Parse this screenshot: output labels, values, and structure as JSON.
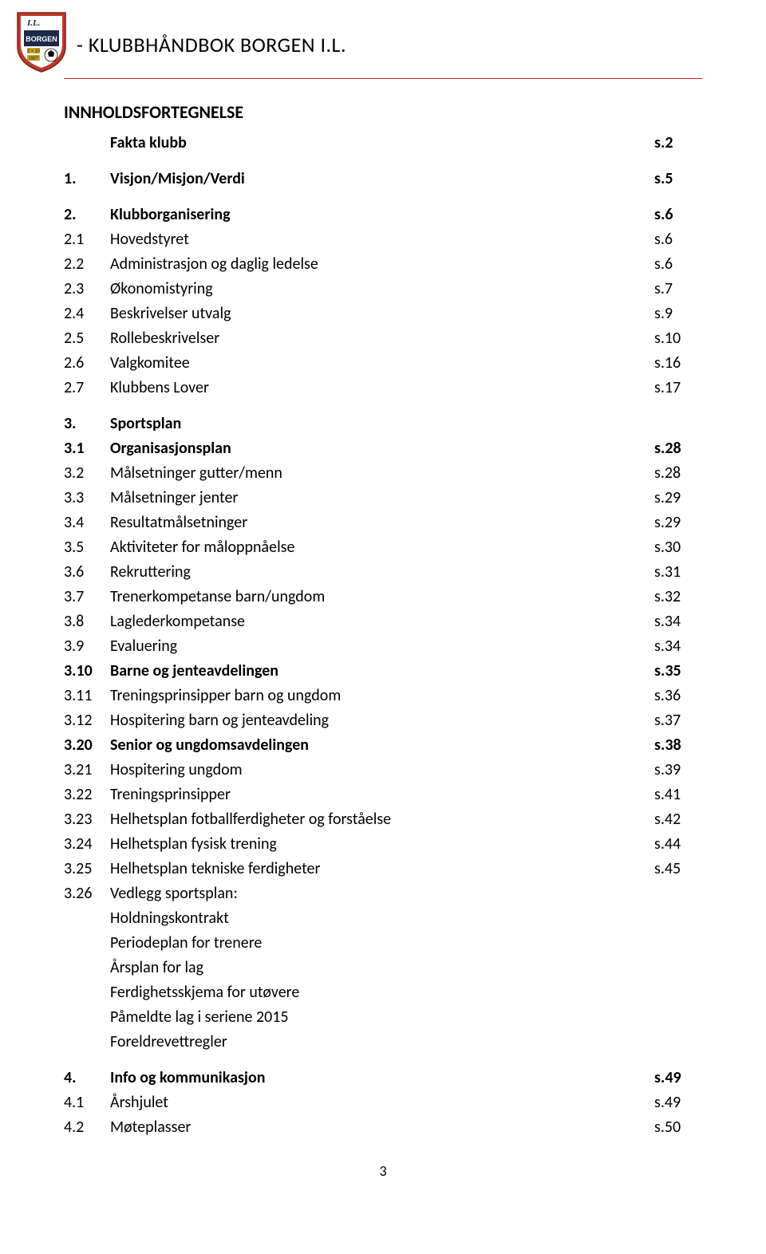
{
  "header": {
    "title": "- KLUBBHÅNDBOK BORGEN I.L.",
    "logo_colors": {
      "red": "#c0392b",
      "white": "#ffffff",
      "navy": "#1a2a4a",
      "gold": "#c9a227"
    },
    "logo_text_top": "I.L.",
    "logo_text_mid": "BORGEN",
    "logo_text_small1": "2 × 10",
    "logo_text_small2": "1927",
    "hr_color": "#c02020"
  },
  "toc_heading": "INNHOLDSFORTEGNELSE",
  "toc": [
    {
      "num": "",
      "label": "Fakta klubb",
      "page": "s.2",
      "bold": true
    },
    {
      "num": "1.",
      "label": "Visjon/Misjon/Verdi",
      "page": "s.5",
      "bold": true
    },
    {
      "num": "2.",
      "label": "Klubborganisering",
      "page": "s.6",
      "bold": true
    },
    {
      "num": "2.1",
      "label": "Hovedstyret",
      "page": "s.6",
      "bold": false
    },
    {
      "num": "2.2",
      "label": "Administrasjon og daglig ledelse",
      "page": "s.6",
      "bold": false
    },
    {
      "num": "2.3",
      "label": "Økonomistyring",
      "page": "s.7",
      "bold": false
    },
    {
      "num": "2.4",
      "label": "Beskrivelser utvalg",
      "page": "s.9",
      "bold": false
    },
    {
      "num": "2.5",
      "label": "Rollebeskrivelser",
      "page": "s.10",
      "bold": false
    },
    {
      "num": "2.6",
      "label": "Valgkomitee",
      "page": "s.16",
      "bold": false
    },
    {
      "num": "2.7",
      "label": "Klubbens Lover",
      "page": "s.17",
      "bold": false
    },
    {
      "num": "3.",
      "label": "Sportsplan",
      "page": "",
      "bold": true
    },
    {
      "num": "3.1",
      "label": "Organisasjonsplan",
      "page": "s.28",
      "bold": true
    },
    {
      "num": "3.2",
      "label": "Målsetninger gutter/menn",
      "page": "s.28",
      "bold": false
    },
    {
      "num": "3.3",
      "label": "Målsetninger jenter",
      "page": "s.29",
      "bold": false
    },
    {
      "num": "3.4",
      "label": "Resultatmålsetninger",
      "page": "s.29",
      "bold": false
    },
    {
      "num": "3.5",
      "label": "Aktiviteter for måloppnåelse",
      "page": "s.30",
      "bold": false
    },
    {
      "num": "3.6",
      "label": "Rekruttering",
      "page": "s.31",
      "bold": false
    },
    {
      "num": "3.7",
      "label": "Trenerkompetanse barn/ungdom",
      "page": "s.32",
      "bold": false
    },
    {
      "num": "3.8",
      "label": "Laglederkompetanse",
      "page": "s.34",
      "bold": false
    },
    {
      "num": "3.9",
      "label": "Evaluering",
      "page": "s.34",
      "bold": false
    },
    {
      "num": "3.10",
      "label": "Barne og jenteavdelingen",
      "page": "s.35",
      "bold": true
    },
    {
      "num": "3.11",
      "label": "Treningsprinsipper barn og ungdom",
      "page": "s.36",
      "bold": false
    },
    {
      "num": "3.12",
      "label": "Hospitering barn og jenteavdeling",
      "page": "s.37",
      "bold": false
    },
    {
      "num": "3.20",
      "label": "Senior og ungdomsavdelingen",
      "page": "s.38",
      "bold": true
    },
    {
      "num": "3.21",
      "label": "Hospitering ungdom",
      "page": "s.39",
      "bold": false
    },
    {
      "num": "3.22",
      "label": "Treningsprinsipper",
      "page": "s.41",
      "bold": false
    },
    {
      "num": "3.23",
      "label": "Helhetsplan fotballferdigheter og forståelse",
      "page": "s.42",
      "bold": false
    },
    {
      "num": "3.24",
      "label": "Helhetsplan fysisk trening",
      "page": "s.44",
      "bold": false
    },
    {
      "num": "3.25",
      "label": "Helhetsplan tekniske ferdigheter",
      "page": "s.45",
      "bold": false
    },
    {
      "num": "3.26",
      "label": "Vedlegg sportsplan:",
      "page": "",
      "bold": false
    }
  ],
  "vedlegg_sub": [
    "Holdningskontrakt",
    "Periodeplan for trenere",
    "Årsplan for lag",
    "Ferdighetsskjema for utøvere",
    "Påmeldte lag i seriene 2015",
    "Foreldrevettregler"
  ],
  "toc2": [
    {
      "num": "4.",
      "label": "Info og kommunikasjon",
      "page": "s.49",
      "bold": true
    },
    {
      "num": "4.1",
      "label": "Årshjulet",
      "page": "s.49",
      "bold": false
    },
    {
      "num": "4.2",
      "label": "Møteplasser",
      "page": "s.50",
      "bold": false
    }
  ],
  "page_number": "3"
}
